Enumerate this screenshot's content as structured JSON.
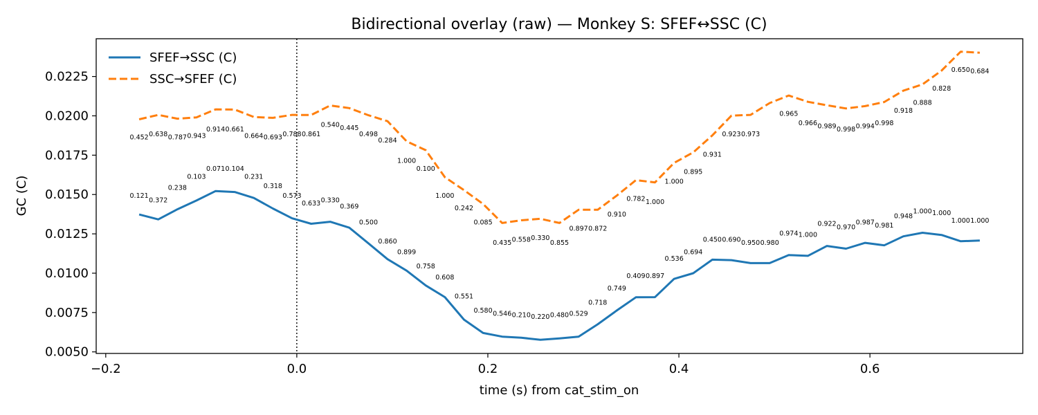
{
  "chart_data": {
    "type": "line",
    "title": "Bidirectional overlay (raw) — Monkey S: SFEF↔SSC (C)",
    "xlabel": "time (s) from cat_stim_on",
    "ylabel": "GC (C)",
    "xlim": [
      -0.21,
      0.76
    ],
    "ylim": [
      0.0049,
      0.0249
    ],
    "xticks": [
      -0.2,
      0.0,
      0.2,
      0.4,
      0.6
    ],
    "xtick_labels": [
      "−0.2",
      "0.0",
      "0.2",
      "0.4",
      "0.6"
    ],
    "yticks": [
      0.005,
      0.0075,
      0.01,
      0.0125,
      0.015,
      0.0175,
      0.02,
      0.0225
    ],
    "ytick_labels": [
      "0.0050",
      "0.0075",
      "0.0100",
      "0.0125",
      "0.0150",
      "0.0175",
      "0.0200",
      "0.0225"
    ],
    "vline_x": 0.0,
    "legend_position": "top-left",
    "x": [
      -0.165,
      -0.145,
      -0.125,
      -0.105,
      -0.085,
      -0.065,
      -0.045,
      -0.025,
      -0.005,
      0.015,
      0.035,
      0.055,
      0.075,
      0.095,
      0.115,
      0.135,
      0.155,
      0.175,
      0.195,
      0.215,
      0.235,
      0.255,
      0.275,
      0.295,
      0.315,
      0.335,
      0.355,
      0.375,
      0.395,
      0.415,
      0.435,
      0.455,
      0.475,
      0.495,
      0.515,
      0.535,
      0.555,
      0.575,
      0.595,
      0.615,
      0.635,
      0.655,
      0.675,
      0.695,
      0.715
    ],
    "series": [
      {
        "name": "SFEF→SSC (C)",
        "color": "#1f77b4",
        "style": "solid",
        "values": [
          0.01373,
          0.01342,
          0.01406,
          0.01462,
          0.01522,
          0.01516,
          0.01478,
          0.01411,
          0.01349,
          0.01314,
          0.01327,
          0.01289,
          0.0119,
          0.01089,
          0.01016,
          0.00922,
          0.00848,
          0.00705,
          0.0062,
          0.00597,
          0.0059,
          0.00577,
          0.00586,
          0.00597,
          0.00675,
          0.00763,
          0.00847,
          0.00848,
          0.00964,
          0.01,
          0.01086,
          0.01083,
          0.01064,
          0.01064,
          0.01115,
          0.0111,
          0.01173,
          0.01156,
          0.01193,
          0.01177,
          0.01234,
          0.01257,
          0.01243,
          0.01203,
          0.01208
        ],
        "pvalues": [
          "0.121",
          "0.372",
          "0.238",
          "0.103",
          "0.071",
          "0.104",
          "0.231",
          "0.318",
          "0.573",
          "0.633",
          "0.330",
          "0.369",
          "0.500",
          "0.860",
          "0.899",
          "0.758",
          "0.608",
          "0.551",
          "0.580",
          "0.546",
          "0.210",
          "0.220",
          "0.480",
          "0.529",
          "0.718",
          "0.749",
          "0.409",
          "0.897",
          "0.536",
          "0.694",
          "0.450",
          "0.690",
          "0.950",
          "0.980",
          "0.974",
          "1.000",
          "0.922",
          "0.970",
          "0.987",
          "0.981",
          "0.948",
          "1.000",
          "1.000",
          "1.000",
          "1.000"
        ],
        "pvalue_y": [
          0.0148,
          0.0145,
          0.0153,
          0.016,
          0.0165,
          0.0165,
          0.016,
          0.0154,
          0.0148,
          0.0143,
          0.0145,
          0.0141,
          0.0131,
          0.0119,
          0.0112,
          0.0103,
          0.0096,
          0.0084,
          0.0075,
          0.0073,
          0.0072,
          0.0071,
          0.0072,
          0.0073,
          0.008,
          0.0089,
          0.0097,
          0.0097,
          0.0108,
          0.0112,
          0.012,
          0.012,
          0.0118,
          0.0118,
          0.0124,
          0.0123,
          0.013,
          0.0128,
          0.0131,
          0.0129,
          0.0135,
          0.0138,
          0.0137,
          0.0132,
          0.0132
        ]
      },
      {
        "name": "SSC→SFEF (C)",
        "color": "#ff7f0e",
        "style": "dashed",
        "values": [
          0.01978,
          0.02006,
          0.01982,
          0.0199,
          0.02041,
          0.0204,
          0.01993,
          0.01987,
          0.02006,
          0.02005,
          0.02066,
          0.02049,
          0.02004,
          0.01966,
          0.01838,
          0.01782,
          0.0161,
          0.01528,
          0.0144,
          0.01319,
          0.01336,
          0.01346,
          0.01319,
          0.01403,
          0.01403,
          0.01493,
          0.01591,
          0.01577,
          0.01701,
          0.01768,
          0.01876,
          0.02001,
          0.02006,
          0.02081,
          0.02129,
          0.02089,
          0.02067,
          0.02047,
          0.02062,
          0.02088,
          0.0216,
          0.022,
          0.02288,
          0.02408,
          0.02401
        ],
        "pvalues": [
          "0.452",
          "0.638",
          "0.787",
          "0.943",
          "0.914",
          "0.661",
          "0.664",
          "0.693",
          "0.788",
          "0.861",
          "0.540",
          "0.445",
          "0.498",
          "0.284",
          "1.000",
          "0.100",
          "1.000",
          "0.242",
          "0.085",
          "0.435",
          "0.558",
          "0.330",
          "0.855",
          "0.897",
          "0.872",
          "0.910",
          "0.782",
          "1.000",
          "1.000",
          "0.895",
          "0.931",
          "0.923",
          "0.973",
          "0.965",
          "0.966",
          "0.989",
          "0.998",
          "0.994",
          "0.998",
          "0.918",
          "0.888",
          "0.828",
          "0.650",
          "0.684"
        ],
        "pvalue_x": [
          -0.165,
          -0.145,
          -0.125,
          -0.105,
          -0.085,
          -0.065,
          -0.045,
          -0.025,
          -0.005,
          0.015,
          0.035,
          0.055,
          0.075,
          0.095,
          0.115,
          0.135,
          0.155,
          0.175,
          0.195,
          0.215,
          0.235,
          0.255,
          0.275,
          0.295,
          0.315,
          0.335,
          0.355,
          0.375,
          0.395,
          0.415,
          0.435,
          0.455,
          0.475,
          0.515,
          0.535,
          0.555,
          0.575,
          0.595,
          0.615,
          0.635,
          0.655,
          0.675,
          0.695,
          0.715
        ],
        "pvalue_y": [
          0.0185,
          0.0187,
          0.0185,
          0.0186,
          0.019,
          0.019,
          0.0186,
          0.0185,
          0.0187,
          0.0187,
          0.0193,
          0.0191,
          0.0187,
          0.0183,
          0.017,
          0.0165,
          0.0148,
          0.014,
          0.0131,
          0.0118,
          0.012,
          0.0121,
          0.0118,
          0.0127,
          0.0127,
          0.0136,
          0.0146,
          0.0144,
          0.0157,
          0.0163,
          0.0174,
          0.0187,
          0.0187,
          0.02,
          0.0194,
          0.0192,
          0.019,
          0.0192,
          0.0194,
          0.0202,
          0.0207,
          0.0216,
          0.0228,
          0.0227
        ]
      }
    ]
  }
}
